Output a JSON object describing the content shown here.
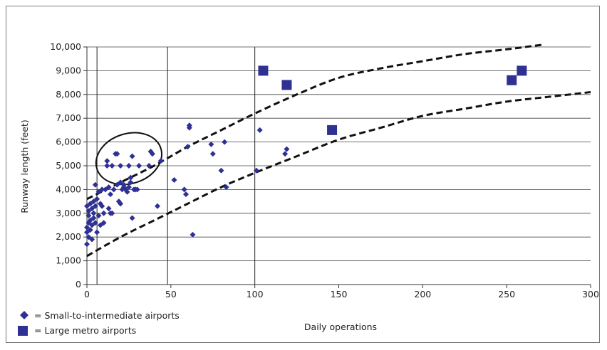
{
  "chart_data": {
    "type": "scatter",
    "title": "",
    "xlabel": "Daily operations",
    "ylabel": "Runway length (feet)",
    "xlim": [
      0,
      300
    ],
    "ylim": [
      0,
      10000
    ],
    "x_ticks": [
      "0",
      "50",
      "100",
      "150",
      "200",
      "250",
      "300"
    ],
    "y_ticks": [
      "0",
      "1,000",
      "2,000",
      "3,000",
      "4,000",
      "5,000",
      "6,000",
      "7,000",
      "8,000",
      "9,000",
      "10,000"
    ],
    "grid": "horizontal",
    "vertical_reference_lines_x": [
      6,
      48,
      100
    ],
    "legend_position": "bottom-left",
    "series": [
      {
        "name": "= Small-to-intermediate airports",
        "marker": "diamond",
        "color": "#2e3192",
        "points": [
          [
            0,
            1700
          ],
          [
            0,
            2200
          ],
          [
            0,
            2400
          ],
          [
            0,
            3300
          ],
          [
            1,
            2000
          ],
          [
            1,
            2600
          ],
          [
            1,
            2900
          ],
          [
            1,
            3100
          ],
          [
            2,
            2300
          ],
          [
            2,
            2700
          ],
          [
            2,
            3400
          ],
          [
            3,
            1900
          ],
          [
            3,
            2500
          ],
          [
            3,
            3200
          ],
          [
            4,
            2800
          ],
          [
            4,
            3000
          ],
          [
            4,
            3500
          ],
          [
            5,
            2600
          ],
          [
            5,
            3300
          ],
          [
            5,
            4200
          ],
          [
            6,
            2200
          ],
          [
            6,
            3600
          ],
          [
            7,
            2900
          ],
          [
            7,
            3900
          ],
          [
            8,
            2500
          ],
          [
            8,
            3400
          ],
          [
            9,
            3300
          ],
          [
            9,
            4000
          ],
          [
            10,
            2600
          ],
          [
            10,
            3000
          ],
          [
            11,
            4000
          ],
          [
            12,
            5000
          ],
          [
            12,
            5200
          ],
          [
            13,
            3200
          ],
          [
            13,
            4100
          ],
          [
            14,
            3000
          ],
          [
            14,
            3800
          ],
          [
            15,
            3000
          ],
          [
            15,
            5000
          ],
          [
            16,
            4000
          ],
          [
            17,
            5500
          ],
          [
            18,
            5500
          ],
          [
            18,
            4200
          ],
          [
            19,
            3500
          ],
          [
            20,
            3400
          ],
          [
            20,
            4300
          ],
          [
            20,
            5000
          ],
          [
            21,
            4000
          ],
          [
            22,
            4100
          ],
          [
            22,
            4200
          ],
          [
            23,
            4000
          ],
          [
            24,
            3900
          ],
          [
            25,
            4100
          ],
          [
            25,
            5000
          ],
          [
            26,
            4300
          ],
          [
            26,
            4500
          ],
          [
            27,
            2800
          ],
          [
            27,
            5400
          ],
          [
            28,
            4000
          ],
          [
            29,
            4000
          ],
          [
            30,
            4000
          ],
          [
            31,
            5000
          ],
          [
            37,
            5000
          ],
          [
            38,
            5600
          ],
          [
            39,
            5500
          ],
          [
            42,
            3300
          ],
          [
            44,
            5200
          ],
          [
            52,
            4400
          ],
          [
            58,
            4000
          ],
          [
            59,
            3800
          ],
          [
            60,
            5800
          ],
          [
            61,
            6600
          ],
          [
            61,
            6700
          ],
          [
            63,
            2100
          ],
          [
            74,
            5900
          ],
          [
            75,
            5500
          ],
          [
            80,
            4800
          ],
          [
            82,
            6000
          ],
          [
            83,
            4100
          ],
          [
            101,
            4800
          ],
          [
            103,
            6500
          ],
          [
            118,
            5500
          ],
          [
            119,
            5700
          ]
        ]
      },
      {
        "name": "= Large metro airports",
        "marker": "square",
        "color": "#2e3192",
        "points": [
          [
            105,
            9000
          ],
          [
            119,
            8400
          ],
          [
            146,
            6500
          ],
          [
            253,
            8600
          ],
          [
            259,
            9000
          ]
        ]
      }
    ],
    "annotations": {
      "upper_dashed_curve": [
        [
          0,
          3600
        ],
        [
          20,
          4300
        ],
        [
          40,
          5000
        ],
        [
          60,
          5800
        ],
        [
          80,
          6500
        ],
        [
          100,
          7200
        ],
        [
          125,
          8000
        ],
        [
          150,
          8700
        ],
        [
          175,
          9100
        ],
        [
          200,
          9400
        ],
        [
          225,
          9700
        ],
        [
          250,
          9900
        ],
        [
          272,
          10100
        ]
      ],
      "lower_dashed_curve": [
        [
          0,
          1200
        ],
        [
          20,
          2000
        ],
        [
          40,
          2700
        ],
        [
          60,
          3400
        ],
        [
          80,
          4100
        ],
        [
          100,
          4700
        ],
        [
          125,
          5400
        ],
        [
          150,
          6100
        ],
        [
          175,
          6600
        ],
        [
          200,
          7100
        ],
        [
          225,
          7400
        ],
        [
          250,
          7700
        ],
        [
          275,
          7900
        ],
        [
          300,
          8100
        ]
      ],
      "ellipse": {
        "cx": 25,
        "cy": 5300,
        "rx": 20,
        "ry": 1050
      }
    }
  }
}
